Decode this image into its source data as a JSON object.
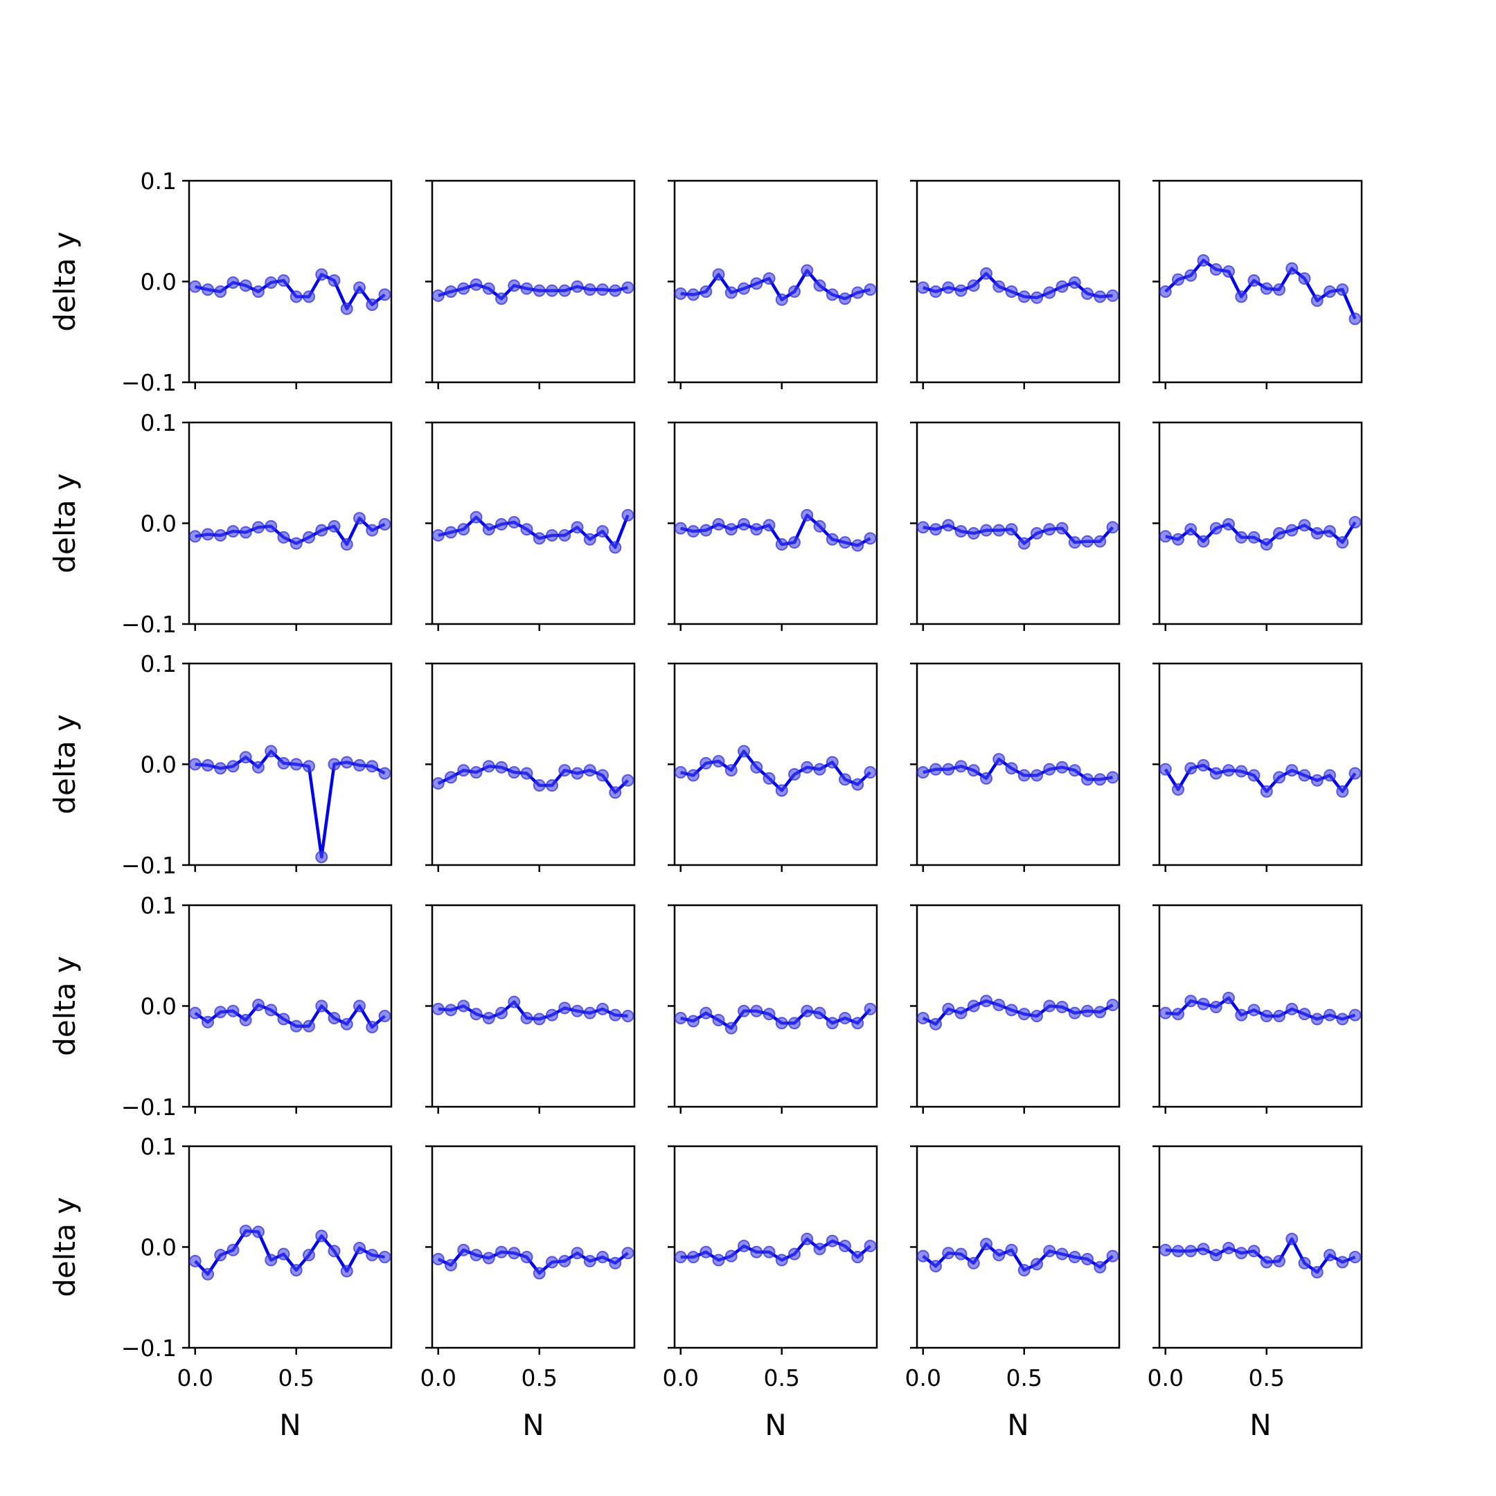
{
  "chart_data": {
    "type": "line",
    "layout": {
      "rows": 5,
      "cols": 5
    },
    "xlabel": "N",
    "ylabel": "delta y",
    "xlim": [
      -0.03,
      0.97
    ],
    "ylim": [
      -0.1,
      0.1
    ],
    "xticks": [
      0.0,
      0.5
    ],
    "xtick_labels": [
      "0.0",
      "0.5"
    ],
    "yticks": [
      0.1,
      0.0,
      -0.1
    ],
    "ytick_labels": [
      "0.1",
      "0.0",
      "−0.1"
    ],
    "line_color": "#0000ee",
    "marker_color": "#5b5bee",
    "grid": false,
    "x": [
      0.0,
      0.0625,
      0.125,
      0.1875,
      0.25,
      0.3125,
      0.375,
      0.4375,
      0.5,
      0.5625,
      0.625,
      0.6875,
      0.75,
      0.8125,
      0.875,
      0.9375
    ],
    "panels": [
      {
        "values": [
          -0.005,
          -0.008,
          -0.01,
          -0.001,
          -0.004,
          -0.01,
          -0.001,
          0.001,
          -0.015,
          -0.015,
          0.007,
          0.001,
          -0.027,
          -0.006,
          -0.023,
          -0.013
        ]
      },
      {
        "values": [
          -0.014,
          -0.01,
          -0.007,
          -0.003,
          -0.007,
          -0.017,
          -0.004,
          -0.007,
          -0.009,
          -0.009,
          -0.009,
          -0.005,
          -0.008,
          -0.008,
          -0.009,
          -0.006
        ]
      },
      {
        "values": [
          -0.012,
          -0.013,
          -0.01,
          0.007,
          -0.011,
          -0.007,
          -0.002,
          0.003,
          -0.018,
          -0.01,
          0.011,
          -0.004,
          -0.013,
          -0.017,
          -0.011,
          -0.008
        ]
      },
      {
        "values": [
          -0.006,
          -0.01,
          -0.006,
          -0.009,
          -0.004,
          0.008,
          -0.005,
          -0.01,
          -0.015,
          -0.016,
          -0.011,
          -0.005,
          -0.001,
          -0.012,
          -0.015,
          -0.014
        ]
      },
      {
        "values": [
          -0.01,
          0.002,
          0.006,
          0.021,
          0.012,
          0.01,
          -0.015,
          0.001,
          -0.007,
          -0.008,
          0.013,
          0.003,
          -0.019,
          -0.01,
          -0.008,
          -0.037
        ]
      },
      {
        "values": [
          -0.013,
          -0.011,
          -0.012,
          -0.008,
          -0.009,
          -0.004,
          -0.003,
          -0.014,
          -0.02,
          -0.014,
          -0.007,
          -0.003,
          -0.021,
          0.005,
          -0.007,
          -0.001
        ]
      },
      {
        "values": [
          -0.012,
          -0.009,
          -0.006,
          0.006,
          -0.006,
          -0.001,
          0.001,
          -0.006,
          -0.015,
          -0.012,
          -0.012,
          -0.004,
          -0.016,
          -0.008,
          -0.024,
          0.008
        ]
      },
      {
        "values": [
          -0.005,
          -0.008,
          -0.007,
          -0.001,
          -0.006,
          -0.001,
          -0.006,
          -0.002,
          -0.021,
          -0.019,
          0.008,
          -0.003,
          -0.016,
          -0.019,
          -0.022,
          -0.015
        ]
      },
      {
        "values": [
          -0.004,
          -0.006,
          -0.002,
          -0.008,
          -0.01,
          -0.007,
          -0.007,
          -0.006,
          -0.02,
          -0.01,
          -0.006,
          -0.005,
          -0.019,
          -0.018,
          -0.018,
          -0.004
        ]
      },
      {
        "values": [
          -0.013,
          -0.016,
          -0.006,
          -0.018,
          -0.005,
          -0.001,
          -0.014,
          -0.014,
          -0.021,
          -0.01,
          -0.007,
          -0.002,
          -0.01,
          -0.008,
          -0.019,
          0.001
        ]
      },
      {
        "values": [
          0.0,
          -0.001,
          -0.004,
          -0.002,
          0.007,
          -0.003,
          0.013,
          0.001,
          0.0,
          -0.002,
          -0.092,
          0.0,
          0.002,
          -0.001,
          -0.002,
          -0.009
        ]
      },
      {
        "values": [
          -0.019,
          -0.013,
          -0.006,
          -0.008,
          -0.002,
          -0.003,
          -0.008,
          -0.009,
          -0.021,
          -0.021,
          -0.006,
          -0.009,
          -0.006,
          -0.011,
          -0.028,
          -0.016
        ]
      },
      {
        "values": [
          -0.008,
          -0.011,
          0.001,
          0.003,
          -0.006,
          0.013,
          -0.003,
          -0.014,
          -0.026,
          -0.01,
          -0.003,
          -0.005,
          0.002,
          -0.015,
          -0.02,
          -0.008
        ]
      },
      {
        "values": [
          -0.008,
          -0.005,
          -0.005,
          -0.002,
          -0.006,
          -0.014,
          0.005,
          -0.004,
          -0.011,
          -0.011,
          -0.005,
          -0.003,
          -0.006,
          -0.015,
          -0.015,
          -0.013
        ]
      },
      {
        "values": [
          -0.005,
          -0.025,
          -0.004,
          -0.001,
          -0.009,
          -0.006,
          -0.007,
          -0.011,
          -0.027,
          -0.013,
          -0.006,
          -0.011,
          -0.016,
          -0.011,
          -0.027,
          -0.009
        ]
      },
      {
        "values": [
          -0.007,
          -0.016,
          -0.006,
          -0.005,
          -0.014,
          0.001,
          -0.004,
          -0.013,
          -0.02,
          -0.02,
          0.0,
          -0.012,
          -0.018,
          0.0,
          -0.021,
          -0.01
        ]
      },
      {
        "values": [
          -0.003,
          -0.004,
          0.0,
          -0.008,
          -0.012,
          -0.007,
          0.004,
          -0.012,
          -0.013,
          -0.009,
          -0.002,
          -0.005,
          -0.007,
          -0.003,
          -0.009,
          -0.01
        ]
      },
      {
        "values": [
          -0.012,
          -0.015,
          -0.007,
          -0.014,
          -0.022,
          -0.005,
          -0.005,
          -0.008,
          -0.017,
          -0.017,
          -0.005,
          -0.007,
          -0.017,
          -0.012,
          -0.017,
          -0.003
        ]
      },
      {
        "values": [
          -0.012,
          -0.018,
          -0.003,
          -0.007,
          0.0,
          0.005,
          0.001,
          -0.004,
          -0.008,
          -0.01,
          0.0,
          -0.001,
          -0.007,
          -0.005,
          -0.006,
          0.001
        ]
      },
      {
        "values": [
          -0.007,
          -0.008,
          0.005,
          0.002,
          -0.001,
          0.008,
          -0.009,
          -0.004,
          -0.01,
          -0.01,
          -0.003,
          -0.008,
          -0.013,
          -0.009,
          -0.013,
          -0.009
        ]
      },
      {
        "values": [
          -0.014,
          -0.027,
          -0.008,
          -0.003,
          0.016,
          0.015,
          -0.013,
          -0.007,
          -0.023,
          -0.008,
          0.011,
          -0.004,
          -0.024,
          -0.001,
          -0.008,
          -0.01
        ]
      },
      {
        "values": [
          -0.012,
          -0.018,
          -0.003,
          -0.008,
          -0.011,
          -0.005,
          -0.006,
          -0.01,
          -0.026,
          -0.015,
          -0.014,
          -0.006,
          -0.014,
          -0.01,
          -0.016,
          -0.006
        ]
      },
      {
        "values": [
          -0.01,
          -0.01,
          -0.005,
          -0.013,
          -0.009,
          0.001,
          -0.005,
          -0.005,
          -0.013,
          -0.007,
          0.008,
          -0.002,
          0.006,
          0.001,
          -0.01,
          0.001
        ]
      },
      {
        "values": [
          -0.009,
          -0.019,
          -0.006,
          -0.007,
          -0.016,
          0.003,
          -0.008,
          -0.003,
          -0.023,
          -0.017,
          -0.004,
          -0.007,
          -0.01,
          -0.012,
          -0.02,
          -0.009
        ]
      },
      {
        "values": [
          -0.003,
          -0.004,
          -0.004,
          -0.002,
          -0.008,
          -0.001,
          -0.006,
          -0.004,
          -0.015,
          -0.014,
          0.008,
          -0.016,
          -0.025,
          -0.008,
          -0.015,
          -0.01
        ]
      }
    ]
  }
}
